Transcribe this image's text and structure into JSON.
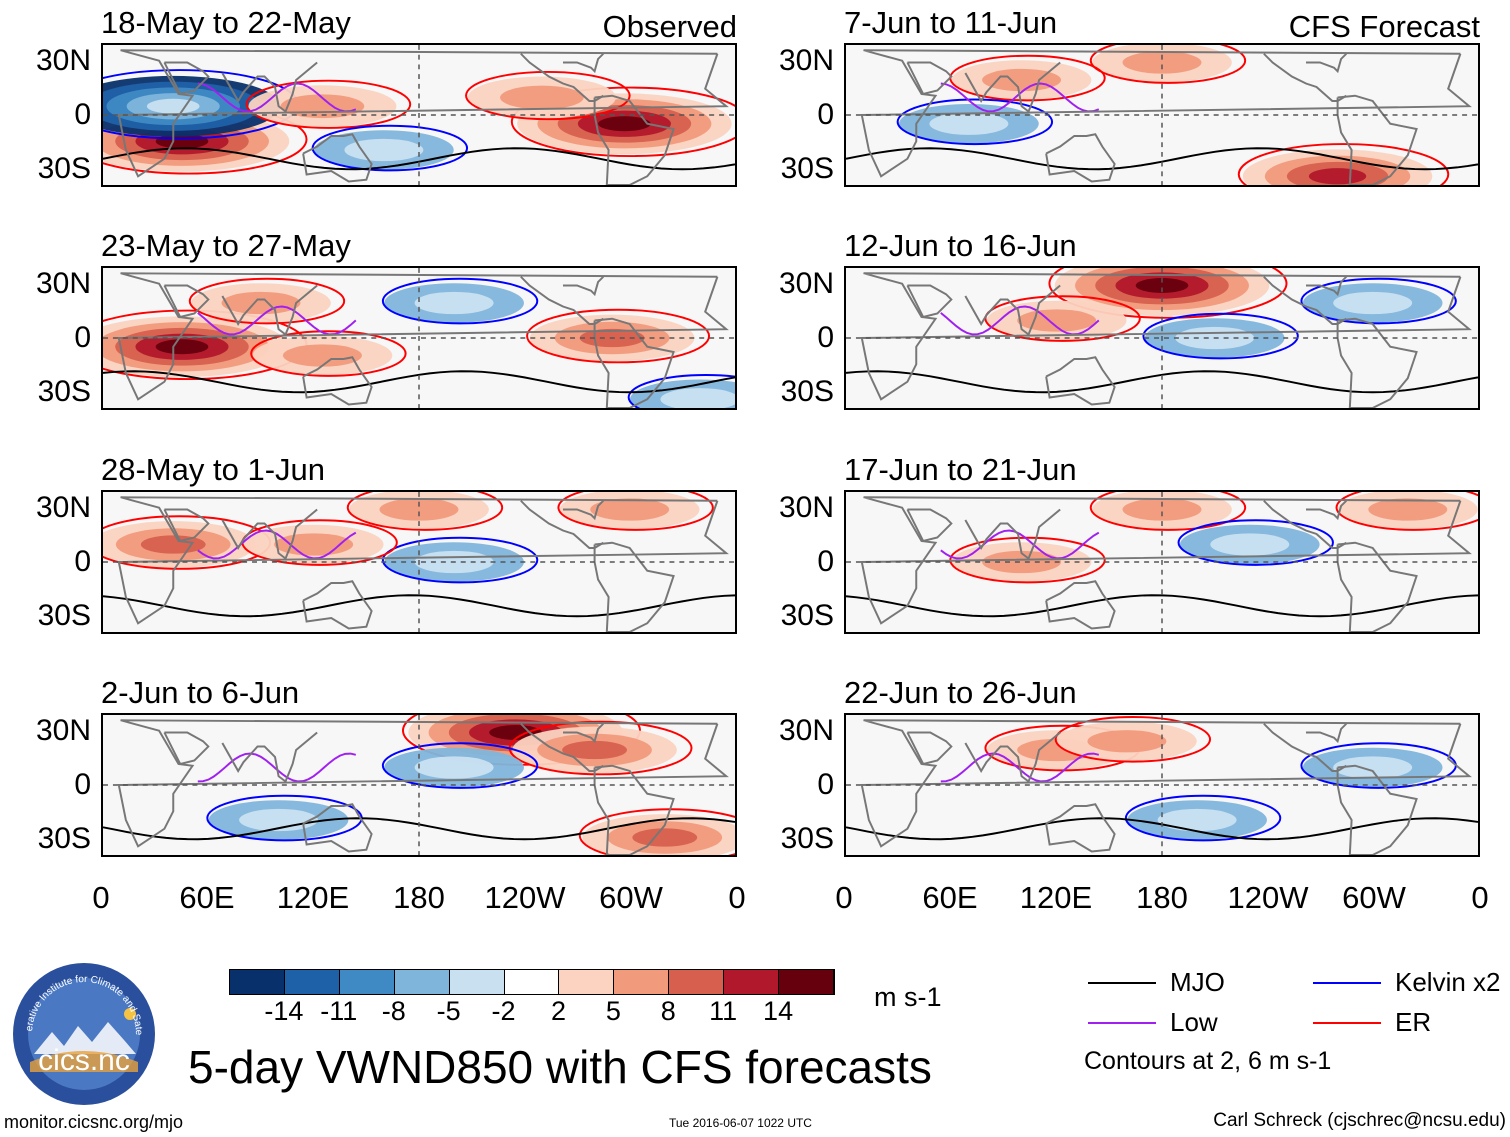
{
  "chart_data": {
    "type": "heatmap",
    "title": "5-day VWND850 with CFS forecasts",
    "variable": "850-hPa meridional wind anomaly",
    "units": "m s-1",
    "observed_label": "Observed",
    "forecast_label": "CFS Forecast",
    "panels": [
      {
        "column": "observed",
        "title": "18-May to 22-May",
        "hotspots": [
          [
            45,
            -15,
            14
          ],
          [
            297,
            -5,
            14
          ],
          [
            40,
            5,
            -14
          ],
          [
            125,
            5,
            6
          ],
          [
            250,
            10,
            6
          ],
          [
            160,
            -20,
            -5
          ]
        ]
      },
      {
        "column": "observed",
        "title": "23-May to 27-May",
        "hotspots": [
          [
            45,
            -5,
            14
          ],
          [
            290,
            0,
            8
          ],
          [
            90,
            20,
            5
          ],
          [
            200,
            20,
            -5
          ],
          [
            125,
            -10,
            5
          ],
          [
            340,
            -35,
            -5
          ]
        ]
      },
      {
        "column": "observed",
        "title": "28-May to 1-Jun",
        "hotspots": [
          [
            40,
            10,
            8
          ],
          [
            180,
            30,
            5
          ],
          [
            300,
            30,
            5
          ],
          [
            200,
            0,
            -5
          ],
          [
            120,
            10,
            5
          ]
        ]
      },
      {
        "column": "observed",
        "title": "2-Jun to 6-Jun",
        "hotspots": [
          [
            235,
            30,
            14
          ],
          [
            280,
            20,
            8
          ],
          [
            320,
            -30,
            8
          ],
          [
            200,
            10,
            -5
          ],
          [
            100,
            -20,
            -5
          ]
        ]
      },
      {
        "column": "forecast",
        "title": "7-Jun to 11-Jun",
        "hotspots": [
          [
            280,
            -35,
            11
          ],
          [
            180,
            30,
            5
          ],
          [
            100,
            20,
            5
          ],
          [
            70,
            -5,
            -5
          ]
        ]
      },
      {
        "column": "forecast",
        "title": "12-Jun to 16-Jun",
        "hotspots": [
          [
            180,
            30,
            14
          ],
          [
            120,
            10,
            5
          ],
          [
            210,
            0,
            -5
          ],
          [
            300,
            20,
            -5
          ]
        ]
      },
      {
        "column": "forecast",
        "title": "17-Jun to 21-Jun",
        "hotspots": [
          [
            180,
            30,
            5
          ],
          [
            320,
            30,
            5
          ],
          [
            230,
            10,
            -5
          ],
          [
            100,
            0,
            5
          ]
        ]
      },
      {
        "column": "forecast",
        "title": "22-Jun to 26-Jun",
        "hotspots": [
          [
            120,
            20,
            5
          ],
          [
            160,
            25,
            5
          ],
          [
            300,
            10,
            -5
          ],
          [
            200,
            -20,
            -5
          ]
        ]
      }
    ],
    "y_tick_labels": [
      "30N",
      "0",
      "30S"
    ],
    "x_tick_labels": [
      "0",
      "60E",
      "120E",
      "180",
      "120W",
      "60W",
      "0"
    ],
    "lon_range": [
      0,
      360
    ],
    "lat_range": [
      -40,
      40
    ],
    "colorbar": {
      "ticks": [
        "-14",
        "-11",
        "-8",
        "-5",
        "-2",
        "2",
        "5",
        "8",
        "11",
        "14"
      ],
      "units_label": "m s-1",
      "colors": [
        "#08306b",
        "#1f61a8",
        "#3f8ac4",
        "#7fb5db",
        "#c9e0f1",
        "#ffffff",
        "#fbd3c0",
        "#f29a7c",
        "#d6604d",
        "#b2182b",
        "#67000d"
      ]
    },
    "legend": [
      {
        "label": "MJO",
        "color": "#000000"
      },
      {
        "label": "Kelvin x2",
        "color": "#0000ff"
      },
      {
        "label": "Low",
        "color": "#a020f0"
      },
      {
        "label": "ER",
        "color": "#ff0000"
      }
    ],
    "contour_note": "Contours at 2, 6 m s-1"
  },
  "footer": {
    "logo_ring_text": "Cooperative Institute for Climate and Satellites",
    "logo_text": "cics.nc",
    "url": "monitor.cicsnc.org/mjo",
    "timestamp": "Tue 2016-06-07 1022 UTC",
    "author": "Carl Schreck (cjschrec@ncsu.edu)"
  }
}
